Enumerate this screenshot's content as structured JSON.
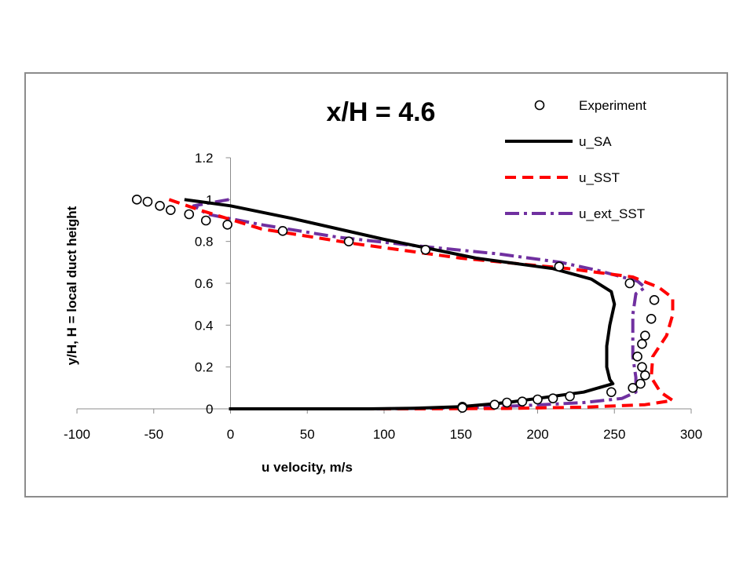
{
  "chart_data": {
    "type": "line",
    "title": "x/H = 4.6",
    "xlabel": "u velocity, m/s",
    "ylabel": "y/H, H = local duct height",
    "xlim": [
      -100,
      300
    ],
    "ylim": [
      0,
      1.2
    ],
    "xticks": [
      "-100",
      "-50",
      "0",
      "50",
      "100",
      "150",
      "200",
      "250",
      "300"
    ],
    "yticks": [
      "0",
      "0.2",
      "0.4",
      "0.6",
      "0.8",
      "1",
      "1.2"
    ],
    "grid": false,
    "legend_position": "top-right",
    "series": [
      {
        "name": "Experiment",
        "style": "markers",
        "color": "#000000",
        "points": [
          [
            -61,
            1.0
          ],
          [
            -54,
            0.99
          ],
          [
            -46,
            0.97
          ],
          [
            -39,
            0.95
          ],
          [
            -27,
            0.93
          ],
          [
            -16,
            0.9
          ],
          [
            -2,
            0.88
          ],
          [
            34,
            0.85
          ],
          [
            77,
            0.8
          ],
          [
            127,
            0.76
          ],
          [
            214,
            0.68
          ],
          [
            260,
            0.6
          ],
          [
            276,
            0.52
          ],
          [
            274,
            0.43
          ],
          [
            270,
            0.35
          ],
          [
            268,
            0.31
          ],
          [
            265,
            0.25
          ],
          [
            268,
            0.2
          ],
          [
            270,
            0.16
          ],
          [
            267,
            0.12
          ],
          [
            262,
            0.1
          ],
          [
            248,
            0.08
          ],
          [
            221,
            0.06
          ],
          [
            210,
            0.05
          ],
          [
            200,
            0.045
          ],
          [
            190,
            0.035
          ],
          [
            180,
            0.03
          ],
          [
            172,
            0.02
          ],
          [
            151,
            0.01
          ],
          [
            151,
            0.005
          ]
        ]
      },
      {
        "name": "u_SA",
        "style": "solid",
        "color": "#000000",
        "points": [
          [
            -30,
            1.0
          ],
          [
            0,
            0.97
          ],
          [
            40,
            0.91
          ],
          [
            100,
            0.81
          ],
          [
            160,
            0.72
          ],
          [
            210,
            0.67
          ],
          [
            235,
            0.62
          ],
          [
            248,
            0.56
          ],
          [
            250,
            0.5
          ],
          [
            247,
            0.4
          ],
          [
            245,
            0.3
          ],
          [
            245,
            0.2
          ],
          [
            247,
            0.14
          ],
          [
            249,
            0.12
          ],
          [
            230,
            0.08
          ],
          [
            200,
            0.05
          ],
          [
            180,
            0.03
          ],
          [
            150,
            0.01
          ],
          [
            120,
            0.003
          ],
          [
            90,
            0.0
          ],
          [
            -1,
            0.0
          ]
        ]
      },
      {
        "name": "u_SST",
        "style": "dashed",
        "color": "#ff0000",
        "points": [
          [
            -40,
            1.0
          ],
          [
            -20,
            0.95
          ],
          [
            20,
            0.86
          ],
          [
            80,
            0.79
          ],
          [
            150,
            0.72
          ],
          [
            220,
            0.67
          ],
          [
            262,
            0.63
          ],
          [
            279,
            0.58
          ],
          [
            288,
            0.53
          ],
          [
            288,
            0.45
          ],
          [
            284,
            0.35
          ],
          [
            275,
            0.25
          ],
          [
            274,
            0.15
          ],
          [
            280,
            0.08
          ],
          [
            288,
            0.04
          ],
          [
            270,
            0.02
          ],
          [
            230,
            0.008
          ],
          [
            180,
            0.002
          ],
          [
            120,
            0.0
          ],
          [
            -1,
            0.0
          ]
        ]
      },
      {
        "name": "u_ext_SST",
        "style": "dashdot",
        "color": "#7030a0",
        "points": [
          [
            -1,
            1.0
          ],
          [
            -24,
            0.97
          ],
          [
            -15,
            0.93
          ],
          [
            20,
            0.88
          ],
          [
            70,
            0.82
          ],
          [
            120,
            0.78
          ],
          [
            175,
            0.74
          ],
          [
            215,
            0.7
          ],
          [
            240,
            0.66
          ],
          [
            265,
            0.61
          ],
          [
            270,
            0.58
          ],
          [
            264,
            0.55
          ],
          [
            262,
            0.45
          ],
          [
            262,
            0.35
          ],
          [
            262,
            0.25
          ],
          [
            264,
            0.15
          ],
          [
            264,
            0.08
          ],
          [
            255,
            0.05
          ],
          [
            230,
            0.03
          ],
          [
            190,
            0.015
          ],
          [
            150,
            0.005
          ],
          [
            100,
            0.0
          ],
          [
            -1,
            0.0
          ]
        ]
      }
    ]
  }
}
